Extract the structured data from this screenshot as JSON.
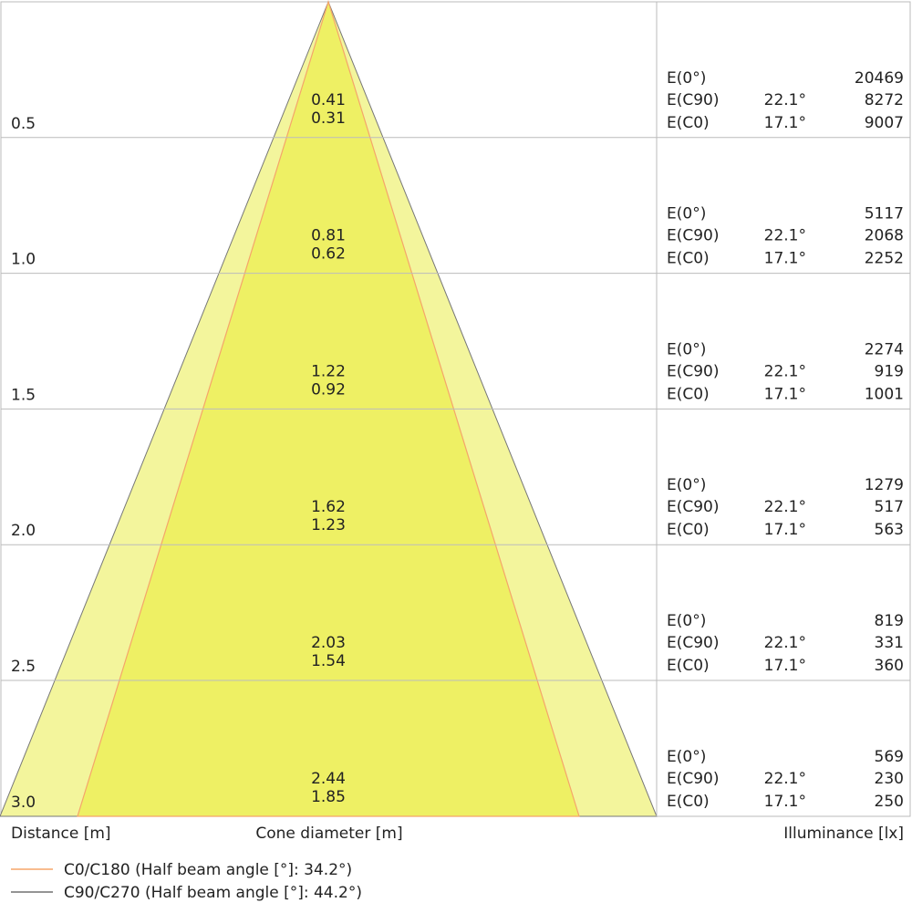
{
  "labels": {
    "e0": "E(0°)",
    "ec90": "E(C90)",
    "ec0": "E(C0)"
  },
  "rows": [
    {
      "distance": "0.5",
      "c90_diameter": "0.41",
      "c0_diameter": "0.31",
      "e0": "20469",
      "c90_angle": "22.1°",
      "e_c90": "8272",
      "c0_angle": "17.1°",
      "e_c0": "9007"
    },
    {
      "distance": "1.0",
      "c90_diameter": "0.81",
      "c0_diameter": "0.62",
      "e0": "5117",
      "c90_angle": "22.1°",
      "e_c90": "2068",
      "c0_angle": "17.1°",
      "e_c0": "2252"
    },
    {
      "distance": "1.5",
      "c90_diameter": "1.22",
      "c0_diameter": "0.92",
      "e0": "2274",
      "c90_angle": "22.1°",
      "e_c90": "919",
      "c0_angle": "17.1°",
      "e_c0": "1001"
    },
    {
      "distance": "2.0",
      "c90_diameter": "1.62",
      "c0_diameter": "1.23",
      "e0": "1279",
      "c90_angle": "22.1°",
      "e_c90": "517",
      "c0_angle": "17.1°",
      "e_c0": "563"
    },
    {
      "distance": "2.5",
      "c90_diameter": "2.03",
      "c0_diameter": "1.54",
      "e0": "819",
      "c90_angle": "22.1°",
      "e_c90": "331",
      "c0_angle": "17.1°",
      "e_c0": "360"
    },
    {
      "distance": "3.0",
      "c90_diameter": "2.44",
      "c0_diameter": "1.85",
      "e0": "569",
      "c90_angle": "22.1°",
      "e_c90": "230",
      "c0_angle": "17.1°",
      "e_c0": "250"
    }
  ],
  "footer": {
    "distance": "Distance [m]",
    "cone": "Cone diameter [m]",
    "illuminance": "Illuminance [lx]"
  },
  "legend": {
    "c0": "C0/C180 (Half beam angle [°]: 34.2°)",
    "c90": "C90/C270 (Half beam angle [°]: 44.2°)"
  }
}
